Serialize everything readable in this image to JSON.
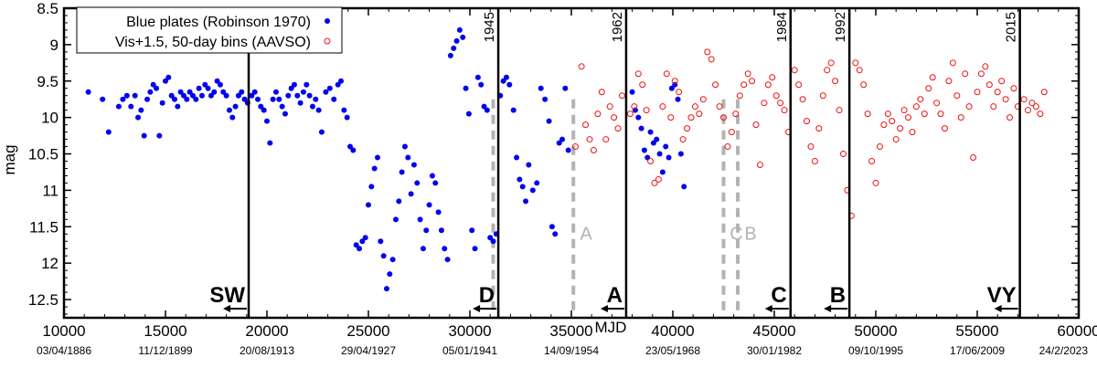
{
  "chart_data": {
    "type": "scatter",
    "xlabel": "MJD",
    "ylabel": "mag",
    "xlim": [
      10000,
      60000
    ],
    "ylim": [
      12.75,
      8.5
    ],
    "y_inverted": true,
    "x_ticks": [
      10000,
      15000,
      20000,
      25000,
      30000,
      35000,
      40000,
      45000,
      50000,
      55000,
      60000
    ],
    "x_tick_labels": [
      "10000",
      "15000",
      "20000",
      "25000",
      "30000",
      "35000",
      "40000",
      "45000",
      "50000",
      "55000",
      "60000"
    ],
    "y_ticks": [
      8.5,
      9,
      9.5,
      10,
      10.5,
      11,
      11.5,
      12,
      12.5
    ],
    "y_tick_labels": [
      "8.5",
      "9",
      "9.5",
      "10",
      "10.5",
      "11",
      "11.5",
      "12",
      "12.5"
    ],
    "date_labels": [
      {
        "x": 10000,
        "text": "03/04/1886"
      },
      {
        "x": 15000,
        "text": "11/12/1899"
      },
      {
        "x": 20000,
        "text": "20/08/1913"
      },
      {
        "x": 25000,
        "text": "29/04/1927"
      },
      {
        "x": 30000,
        "text": "05/01/1941"
      },
      {
        "x": 35000,
        "text": "14/09/1954"
      },
      {
        "x": 40000,
        "text": "23/05/1968"
      },
      {
        "x": 45000,
        "text": "30/01/1982"
      },
      {
        "x": 50000,
        "text": "09/10/1995"
      },
      {
        "x": 55000,
        "text": "17/06/2009"
      },
      {
        "x": 60000,
        "text": "24/2/2023"
      }
    ],
    "legend": {
      "position": "top-left",
      "entries": [
        {
          "label": "Blue plates (Robinson 1970)",
          "marker": "filled-circle",
          "color": "#0000ee"
        },
        {
          "label": "Vis+1.5, 50-day bins (AAVSO)",
          "marker": "open-circle",
          "color": "#ee1111"
        }
      ]
    },
    "vertical_lines": [
      {
        "x": 19100,
        "label": "",
        "event": "SW"
      },
      {
        "x": 31400,
        "label": "1945",
        "event": "D"
      },
      {
        "x": 37700,
        "label": "1962",
        "event": "A"
      },
      {
        "x": 45800,
        "label": "1984",
        "event": "C"
      },
      {
        "x": 48700,
        "label": "1992",
        "event": "B"
      },
      {
        "x": 57100,
        "label": "2015",
        "event": "VY"
      }
    ],
    "dashed_lines": [
      {
        "x": 31150,
        "label": ""
      },
      {
        "x": 35100,
        "label": "A"
      },
      {
        "x": 42500,
        "label": "C"
      },
      {
        "x": 43200,
        "label": "B"
      }
    ],
    "series": [
      {
        "name": "Blue plates (Robinson 1970)",
        "color": "#0000ee",
        "marker": "filled",
        "points": [
          [
            11200,
            9.65
          ],
          [
            11900,
            9.75
          ],
          [
            12200,
            10.2
          ],
          [
            12700,
            9.85
          ],
          [
            12900,
            9.75
          ],
          [
            13100,
            9.7
          ],
          [
            13300,
            9.85
          ],
          [
            13500,
            9.7
          ],
          [
            13650,
            10.0
          ],
          [
            13800,
            9.9
          ],
          [
            13950,
            10.25
          ],
          [
            14100,
            9.75
          ],
          [
            14250,
            9.65
          ],
          [
            14400,
            9.55
          ],
          [
            14550,
            9.6
          ],
          [
            14700,
            10.25
          ],
          [
            14850,
            9.8
          ],
          [
            15000,
            9.5
          ],
          [
            15150,
            9.45
          ],
          [
            15300,
            9.7
          ],
          [
            15450,
            9.75
          ],
          [
            15600,
            9.85
          ],
          [
            15750,
            9.65
          ],
          [
            15900,
            9.7
          ],
          [
            16050,
            9.75
          ],
          [
            16200,
            9.65
          ],
          [
            16350,
            9.7
          ],
          [
            16500,
            9.75
          ],
          [
            16650,
            9.6
          ],
          [
            16800,
            9.7
          ],
          [
            16950,
            9.55
          ],
          [
            17100,
            9.6
          ],
          [
            17250,
            9.7
          ],
          [
            17400,
            9.65
          ],
          [
            17550,
            9.5
          ],
          [
            17700,
            9.55
          ],
          [
            17850,
            9.65
          ],
          [
            18000,
            9.7
          ],
          [
            18150,
            9.9
          ],
          [
            18300,
            10.0
          ],
          [
            18450,
            9.85
          ],
          [
            18600,
            9.7
          ],
          [
            18750,
            9.65
          ],
          [
            18900,
            9.75
          ],
          [
            19050,
            9.8
          ],
          [
            19250,
            9.7
          ],
          [
            19400,
            9.65
          ],
          [
            19550,
            9.75
          ],
          [
            19700,
            9.85
          ],
          [
            19850,
            9.9
          ],
          [
            20000,
            10.05
          ],
          [
            20150,
            10.35
          ],
          [
            20300,
            9.75
          ],
          [
            20450,
            9.65
          ],
          [
            20600,
            9.75
          ],
          [
            20750,
            9.85
          ],
          [
            20900,
            9.95
          ],
          [
            21050,
            9.7
          ],
          [
            21200,
            9.6
          ],
          [
            21350,
            9.55
          ],
          [
            21500,
            9.7
          ],
          [
            21650,
            9.8
          ],
          [
            21800,
            9.65
          ],
          [
            21950,
            9.55
          ],
          [
            22100,
            9.7
          ],
          [
            22250,
            9.85
          ],
          [
            22400,
            9.75
          ],
          [
            22550,
            9.9
          ],
          [
            22700,
            10.2
          ],
          [
            22900,
            9.65
          ],
          [
            23100,
            9.6
          ],
          [
            23300,
            9.75
          ],
          [
            23500,
            9.55
          ],
          [
            23650,
            9.5
          ],
          [
            23800,
            9.9
          ],
          [
            23950,
            10.0
          ],
          [
            24100,
            10.4
          ],
          [
            24250,
            10.45
          ],
          [
            24400,
            11.75
          ],
          [
            24550,
            11.8
          ],
          [
            24700,
            11.7
          ],
          [
            24850,
            11.65
          ],
          [
            25000,
            11.2
          ],
          [
            25150,
            10.95
          ],
          [
            25300,
            10.7
          ],
          [
            25450,
            10.55
          ],
          [
            25600,
            11.7
          ],
          [
            25750,
            11.9
          ],
          [
            25900,
            12.35
          ],
          [
            26050,
            12.15
          ],
          [
            26200,
            11.95
          ],
          [
            26350,
            11.4
          ],
          [
            26500,
            11.15
          ],
          [
            26650,
            10.75
          ],
          [
            26800,
            10.4
          ],
          [
            26950,
            10.55
          ],
          [
            27100,
            11.05
          ],
          [
            27250,
            10.65
          ],
          [
            27400,
            10.9
          ],
          [
            27550,
            11.4
          ],
          [
            27700,
            11.8
          ],
          [
            27850,
            11.55
          ],
          [
            28000,
            11.2
          ],
          [
            28150,
            10.8
          ],
          [
            28300,
            10.9
          ],
          [
            28450,
            11.3
          ],
          [
            28600,
            11.55
          ],
          [
            28750,
            11.8
          ],
          [
            28900,
            11.95
          ],
          [
            29050,
            9.15
          ],
          [
            29200,
            9.05
          ],
          [
            29350,
            8.95
          ],
          [
            29500,
            8.8
          ],
          [
            29650,
            8.9
          ],
          [
            29800,
            9.6
          ],
          [
            29950,
            9.95
          ],
          [
            30100,
            11.55
          ],
          [
            30250,
            11.8
          ],
          [
            30400,
            9.45
          ],
          [
            30550,
            9.55
          ],
          [
            30700,
            9.85
          ],
          [
            30850,
            9.9
          ],
          [
            31000,
            11.65
          ],
          [
            31150,
            11.7
          ],
          [
            31300,
            11.6
          ],
          [
            31500,
            9.7
          ],
          [
            31650,
            9.5
          ],
          [
            31800,
            9.45
          ],
          [
            31950,
            9.55
          ],
          [
            32150,
            9.9
          ],
          [
            32300,
            10.55
          ],
          [
            32450,
            10.85
          ],
          [
            32600,
            10.95
          ],
          [
            32750,
            11.15
          ],
          [
            32900,
            10.65
          ],
          [
            33100,
            11.0
          ],
          [
            33300,
            10.9
          ],
          [
            33500,
            9.6
          ],
          [
            33700,
            9.75
          ],
          [
            33900,
            10.05
          ],
          [
            34050,
            11.5
          ],
          [
            34200,
            11.6
          ],
          [
            34400,
            10.35
          ],
          [
            34550,
            10.3
          ],
          [
            34700,
            9.6
          ],
          [
            34850,
            10.45
          ],
          [
            38000,
            9.65
          ],
          [
            38150,
            9.9
          ],
          [
            38300,
            10.0
          ],
          [
            38450,
            10.15
          ],
          [
            38600,
            10.45
          ],
          [
            38750,
            10.55
          ],
          [
            38900,
            10.2
          ],
          [
            39050,
            10.35
          ],
          [
            39200,
            10.3
          ],
          [
            39350,
            10.5
          ],
          [
            39500,
            10.75
          ],
          [
            39650,
            10.4
          ],
          [
            39800,
            10.55
          ],
          [
            39950,
            9.6
          ],
          [
            40100,
            9.55
          ],
          [
            40250,
            9.75
          ],
          [
            40400,
            10.5
          ],
          [
            40550,
            10.95
          ]
        ]
      },
      {
        "name": "Vis+1.5, 50-day bins (AAVSO)",
        "color": "#ee1111",
        "marker": "open",
        "points": [
          [
            35200,
            10.4
          ],
          [
            35500,
            9.3
          ],
          [
            35700,
            10.1
          ],
          [
            35900,
            10.3
          ],
          [
            36100,
            10.45
          ],
          [
            36300,
            9.95
          ],
          [
            36500,
            9.65
          ],
          [
            36700,
            10.3
          ],
          [
            36900,
            9.85
          ],
          [
            37100,
            10.0
          ],
          [
            37300,
            10.15
          ],
          [
            37500,
            9.7
          ],
          [
            37900,
            9.95
          ],
          [
            38100,
            9.85
          ],
          [
            38300,
            9.4
          ],
          [
            38500,
            9.55
          ],
          [
            38700,
            9.9
          ],
          [
            38900,
            10.6
          ],
          [
            39100,
            10.9
          ],
          [
            39300,
            10.85
          ],
          [
            39500,
            9.85
          ],
          [
            39700,
            9.4
          ],
          [
            39900,
            10.0
          ],
          [
            40100,
            9.5
          ],
          [
            40300,
            9.65
          ],
          [
            40500,
            10.3
          ],
          [
            40700,
            10.15
          ],
          [
            40900,
            10.0
          ],
          [
            41100,
            9.85
          ],
          [
            41300,
            9.95
          ],
          [
            41500,
            9.75
          ],
          [
            41700,
            9.1
          ],
          [
            41900,
            9.2
          ],
          [
            42100,
            9.55
          ],
          [
            42300,
            9.85
          ],
          [
            42500,
            10.0
          ],
          [
            42700,
            10.4
          ],
          [
            42900,
            10.2
          ],
          [
            43100,
            9.95
          ],
          [
            43300,
            9.7
          ],
          [
            43500,
            9.55
          ],
          [
            43700,
            9.4
          ],
          [
            43900,
            9.5
          ],
          [
            44100,
            10.1
          ],
          [
            44300,
            10.65
          ],
          [
            44500,
            9.8
          ],
          [
            44700,
            9.55
          ],
          [
            44900,
            9.45
          ],
          [
            45100,
            9.7
          ],
          [
            45300,
            9.8
          ],
          [
            45500,
            9.9
          ],
          [
            45700,
            10.2
          ],
          [
            46000,
            9.35
          ],
          [
            46200,
            9.55
          ],
          [
            46400,
            9.75
          ],
          [
            46600,
            10.05
          ],
          [
            46800,
            10.4
          ],
          [
            47000,
            10.6
          ],
          [
            47200,
            10.15
          ],
          [
            47400,
            9.7
          ],
          [
            47600,
            9.35
          ],
          [
            47800,
            9.25
          ],
          [
            48000,
            9.5
          ],
          [
            48200,
            9.9
          ],
          [
            48400,
            10.5
          ],
          [
            48600,
            11.0
          ],
          [
            48800,
            11.35
          ],
          [
            49000,
            9.25
          ],
          [
            49200,
            9.35
          ],
          [
            49400,
            9.55
          ],
          [
            49600,
            9.95
          ],
          [
            49800,
            10.6
          ],
          [
            50000,
            10.9
          ],
          [
            50200,
            10.4
          ],
          [
            50400,
            10.1
          ],
          [
            50600,
            9.95
          ],
          [
            50800,
            10.05
          ],
          [
            51000,
            10.3
          ],
          [
            51200,
            10.15
          ],
          [
            51400,
            9.9
          ],
          [
            51600,
            10.0
          ],
          [
            51800,
            10.2
          ],
          [
            52000,
            9.85
          ],
          [
            52200,
            9.75
          ],
          [
            52400,
            9.95
          ],
          [
            52600,
            9.6
          ],
          [
            52800,
            9.45
          ],
          [
            53000,
            9.8
          ],
          [
            53200,
            9.95
          ],
          [
            53400,
            10.15
          ],
          [
            53600,
            9.5
          ],
          [
            53800,
            9.25
          ],
          [
            54000,
            9.7
          ],
          [
            54200,
            10.0
          ],
          [
            54400,
            9.4
          ],
          [
            54600,
            9.85
          ],
          [
            54800,
            10.55
          ],
          [
            55000,
            9.65
          ],
          [
            55200,
            9.4
          ],
          [
            55400,
            9.3
          ],
          [
            55600,
            9.55
          ],
          [
            55800,
            9.85
          ],
          [
            56000,
            9.65
          ],
          [
            56200,
            9.5
          ],
          [
            56400,
            9.75
          ],
          [
            56600,
            10.0
          ],
          [
            56800,
            9.6
          ],
          [
            57000,
            9.85
          ],
          [
            57300,
            9.75
          ],
          [
            57500,
            9.9
          ],
          [
            57700,
            9.8
          ],
          [
            57900,
            9.85
          ],
          [
            58100,
            9.95
          ],
          [
            58300,
            9.65
          ]
        ]
      }
    ]
  }
}
